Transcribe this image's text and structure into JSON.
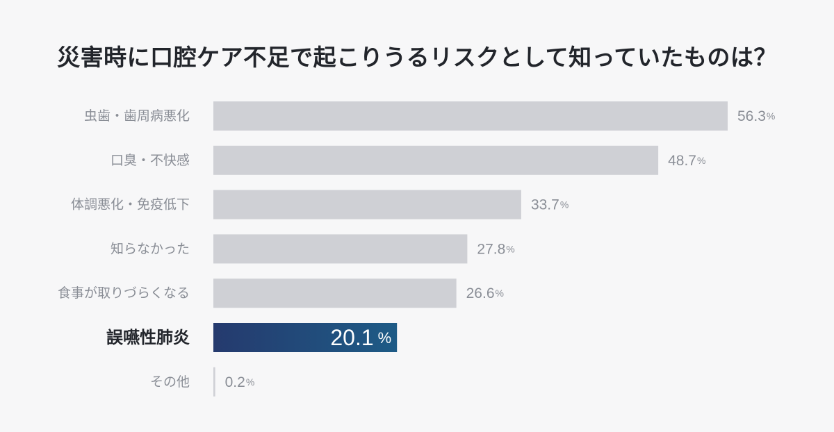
{
  "chart_data": {
    "type": "bar",
    "orientation": "horizontal",
    "title": "災害時に口腔ケア不足で起こりうるリスクとして知っていたものは？",
    "categories": [
      "虫歯・歯周病悪化",
      "口臭・不快感",
      "体調悪化・免疫低下",
      "知らなかった",
      "食事が取りづらくなる",
      "誤嚥性肺炎",
      "その他"
    ],
    "values": [
      56.3,
      48.7,
      33.7,
      27.8,
      26.6,
      20.1,
      0.2
    ],
    "unit": "%",
    "highlight_category": "誤嚥性肺炎",
    "xlim": [
      0,
      60
    ],
    "grid": false,
    "legend": "none",
    "colors": {
      "bar": "#cfd0d5",
      "highlight_start": "#253a6e",
      "highlight_end": "#1e5b86",
      "label": "#8a8e96",
      "title": "#22252b",
      "background": "#f7f7f8"
    }
  }
}
